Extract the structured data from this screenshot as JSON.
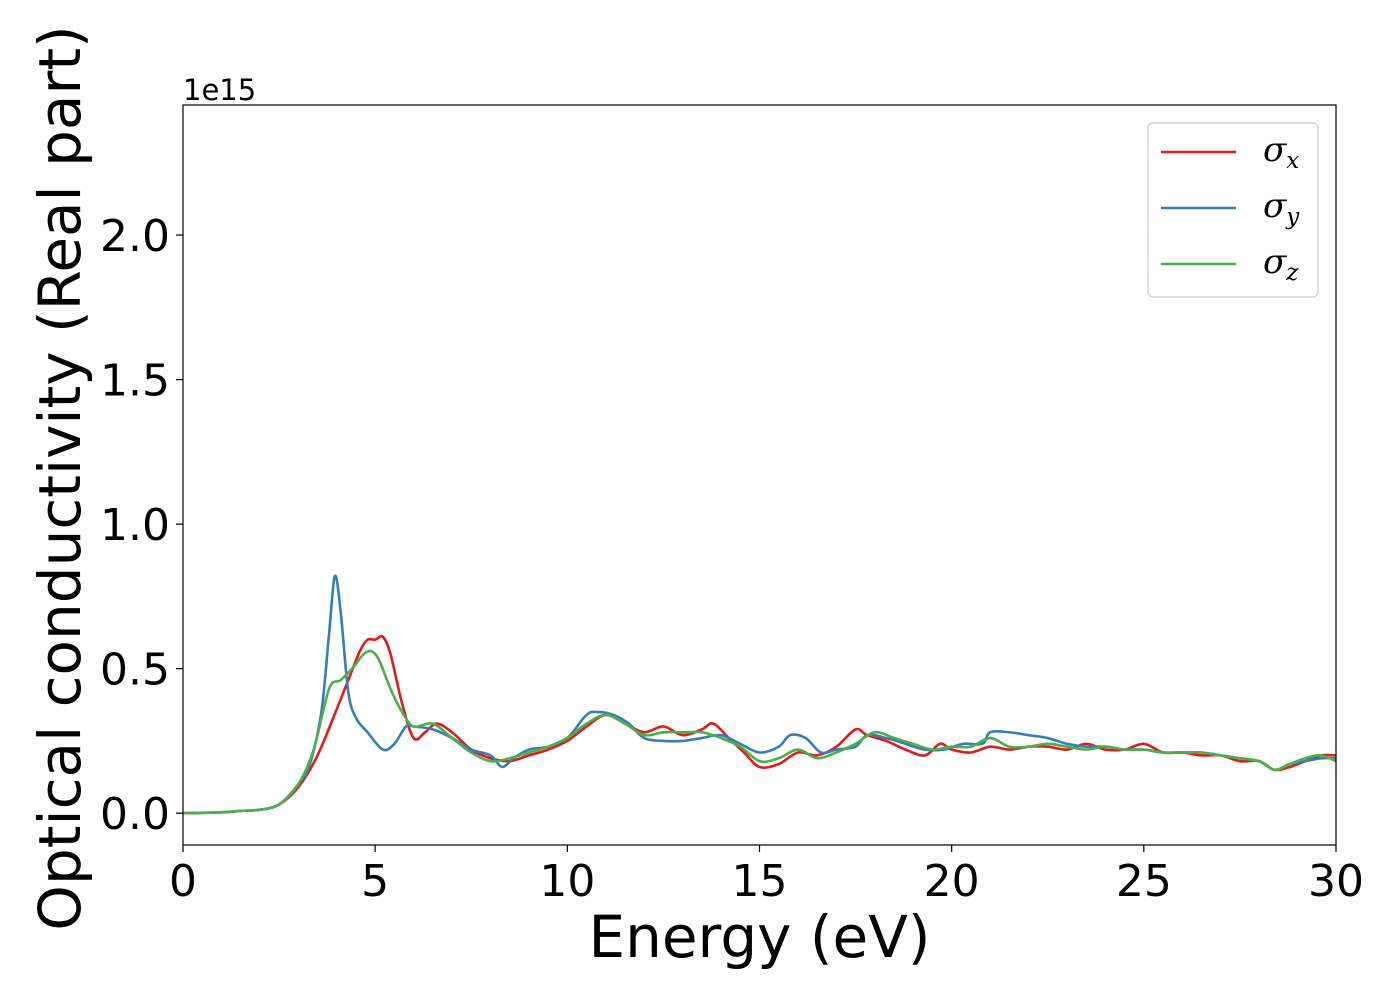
{
  "chart_data": {
    "type": "line",
    "title": "",
    "xlabel": "Energy (eV)",
    "ylabel": "Optical conductivity (Real part)",
    "y_offset_text": "1e15",
    "xlim": [
      0,
      30
    ],
    "ylim": [
      -0.11,
      2.45
    ],
    "xticks": [
      0,
      5,
      10,
      15,
      20,
      25,
      30
    ],
    "xtick_labels": [
      "0",
      "5",
      "10",
      "15",
      "20",
      "25",
      "30"
    ],
    "yticks": [
      0.0,
      0.5,
      1.0,
      1.5,
      2.0
    ],
    "ytick_labels": [
      "0.0",
      "0.5",
      "1.0",
      "1.5",
      "2.0"
    ],
    "grid": false,
    "legend_position": "top-right",
    "series": [
      {
        "name": "σx",
        "symbol": "σ",
        "subscript": "x",
        "color": "#e41a1c",
        "x": [
          0,
          1,
          1.5,
          2,
          2.5,
          3,
          3.5,
          4,
          4.3,
          4.6,
          4.8,
          5,
          5.2,
          5.4,
          5.7,
          6,
          6.3,
          6.6,
          7,
          7.5,
          8,
          8.5,
          9,
          9.5,
          10,
          10.5,
          11,
          11.5,
          12,
          12.5,
          13,
          13.5,
          13.8,
          14.2,
          14.6,
          15,
          15.5,
          16,
          16.5,
          17,
          17.5,
          17.8,
          18.3,
          18.8,
          19.3,
          19.7,
          20,
          20.5,
          21,
          21.5,
          22,
          22.5,
          23,
          23.5,
          24,
          24.5,
          25,
          25.5,
          26,
          26.5,
          27,
          27.5,
          28,
          28.4,
          28.8,
          29.2,
          29.6,
          30
        ],
        "y": [
          0,
          0.003,
          0.008,
          0.012,
          0.03,
          0.09,
          0.2,
          0.36,
          0.46,
          0.56,
          0.6,
          0.6,
          0.61,
          0.55,
          0.38,
          0.26,
          0.28,
          0.31,
          0.28,
          0.22,
          0.19,
          0.18,
          0.2,
          0.22,
          0.25,
          0.3,
          0.34,
          0.31,
          0.28,
          0.3,
          0.27,
          0.29,
          0.31,
          0.26,
          0.21,
          0.16,
          0.17,
          0.21,
          0.2,
          0.23,
          0.29,
          0.27,
          0.25,
          0.22,
          0.2,
          0.24,
          0.22,
          0.21,
          0.23,
          0.22,
          0.23,
          0.23,
          0.22,
          0.24,
          0.22,
          0.22,
          0.24,
          0.21,
          0.21,
          0.2,
          0.2,
          0.18,
          0.18,
          0.15,
          0.16,
          0.18,
          0.2,
          0.2
        ]
      },
      {
        "name": "σy",
        "symbol": "σ",
        "subscript": "y",
        "color": "#377eb8",
        "x": [
          0,
          1,
          1.5,
          2,
          2.5,
          3,
          3.3,
          3.6,
          3.8,
          3.95,
          4.1,
          4.3,
          4.5,
          4.8,
          5.2,
          5.5,
          5.8,
          6,
          6.5,
          7,
          7.5,
          8,
          8.3,
          8.6,
          9,
          9.5,
          10,
          10.5,
          10.8,
          11.2,
          11.6,
          12,
          12.5,
          13,
          13.5,
          14,
          14.5,
          15,
          15.5,
          15.8,
          16.2,
          16.6,
          17,
          17.5,
          17.8,
          18.3,
          18.8,
          19.3,
          19.8,
          20.3,
          20.8,
          21,
          21.5,
          22,
          22.5,
          23,
          23.5,
          24,
          24.5,
          25,
          25.5,
          26,
          26.5,
          27,
          27.5,
          28,
          28.4,
          28.8,
          29.2,
          29.6,
          30
        ],
        "y": [
          0,
          0.003,
          0.008,
          0.012,
          0.03,
          0.1,
          0.17,
          0.35,
          0.62,
          0.82,
          0.7,
          0.42,
          0.33,
          0.28,
          0.22,
          0.24,
          0.3,
          0.3,
          0.29,
          0.26,
          0.22,
          0.2,
          0.16,
          0.19,
          0.22,
          0.23,
          0.26,
          0.34,
          0.35,
          0.34,
          0.31,
          0.26,
          0.25,
          0.25,
          0.26,
          0.27,
          0.24,
          0.21,
          0.23,
          0.27,
          0.26,
          0.21,
          0.22,
          0.23,
          0.27,
          0.26,
          0.24,
          0.22,
          0.22,
          0.24,
          0.24,
          0.28,
          0.28,
          0.27,
          0.26,
          0.24,
          0.23,
          0.23,
          0.22,
          0.22,
          0.21,
          0.21,
          0.21,
          0.2,
          0.19,
          0.18,
          0.15,
          0.17,
          0.18,
          0.19,
          0.19
        ]
      },
      {
        "name": "σz",
        "symbol": "σ",
        "subscript": "z",
        "color": "#4daf4a",
        "x": [
          0,
          1,
          1.5,
          2,
          2.5,
          3,
          3.4,
          3.8,
          4.1,
          4.4,
          4.7,
          4.9,
          5.1,
          5.4,
          5.7,
          6,
          6.5,
          7,
          7.5,
          8,
          8.5,
          9,
          9.5,
          10,
          10.5,
          11,
          11.5,
          12,
          12.5,
          13,
          13.5,
          14,
          14.5,
          15,
          15.5,
          16,
          16.5,
          17,
          17.5,
          18,
          18.5,
          19,
          19.5,
          20,
          20.5,
          21,
          21.5,
          22,
          22.5,
          23,
          23.5,
          24,
          24.5,
          25,
          25.5,
          26,
          26.5,
          27,
          27.5,
          28,
          28.4,
          28.8,
          29.2,
          29.6,
          30
        ],
        "y": [
          0,
          0.003,
          0.008,
          0.012,
          0.03,
          0.1,
          0.22,
          0.43,
          0.46,
          0.5,
          0.55,
          0.56,
          0.53,
          0.43,
          0.35,
          0.3,
          0.31,
          0.26,
          0.21,
          0.18,
          0.19,
          0.21,
          0.23,
          0.26,
          0.31,
          0.34,
          0.31,
          0.27,
          0.28,
          0.28,
          0.28,
          0.26,
          0.23,
          0.18,
          0.19,
          0.22,
          0.19,
          0.21,
          0.24,
          0.28,
          0.26,
          0.24,
          0.22,
          0.23,
          0.23,
          0.26,
          0.23,
          0.23,
          0.24,
          0.23,
          0.22,
          0.23,
          0.22,
          0.22,
          0.21,
          0.21,
          0.21,
          0.2,
          0.19,
          0.18,
          0.15,
          0.17,
          0.19,
          0.2,
          0.18
        ]
      }
    ]
  }
}
